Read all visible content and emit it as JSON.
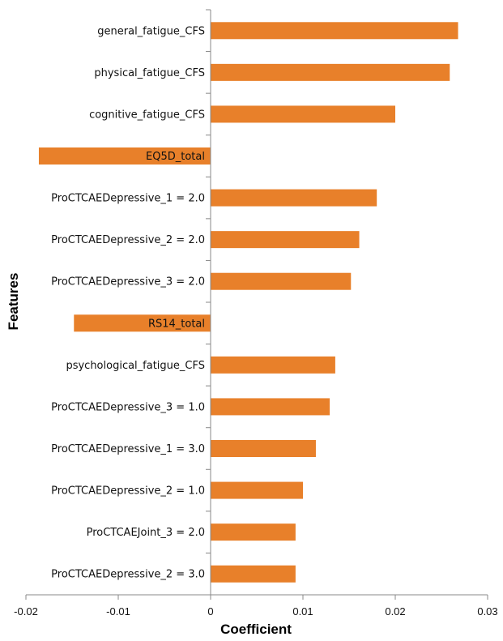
{
  "chart_data": {
    "type": "bar",
    "orientation": "horizontal",
    "xlabel": "Coefficient",
    "ylabel": "Features",
    "xlim": [
      -0.02,
      0.03
    ],
    "xticks": [
      -0.02,
      -0.01,
      0,
      0.01,
      0.02,
      0.03
    ],
    "xtick_labels": [
      "-0.02",
      "-0.01",
      "0",
      "0.01",
      "0.02",
      "0.03"
    ],
    "bar_color": "#E8802A",
    "grid": false,
    "categories": [
      "general_fatigue_CFS",
      "physical_fatigue_CFS",
      "cognitive_fatigue_CFS",
      "EQ5D_total",
      "ProCTCAEDepressive_1 = 2.0",
      "ProCTCAEDepressive_2 = 2.0",
      "ProCTCAEDepressive_3 = 2.0",
      "RS14_total",
      "psychological_fatigue_CFS",
      "ProCTCAEDepressive_3 = 1.0",
      "ProCTCAEDepressive_1 = 3.0",
      "ProCTCAEDepressive_2 = 1.0",
      "ProCTCAEJoint_3 = 2.0",
      "ProCTCAEDepressive_2 = 3.0"
    ],
    "values": [
      0.0268,
      0.0259,
      0.02,
      -0.0186,
      0.018,
      0.0161,
      0.0152,
      -0.0148,
      0.0135,
      0.0129,
      0.0114,
      0.01,
      0.0092,
      0.0092
    ]
  }
}
